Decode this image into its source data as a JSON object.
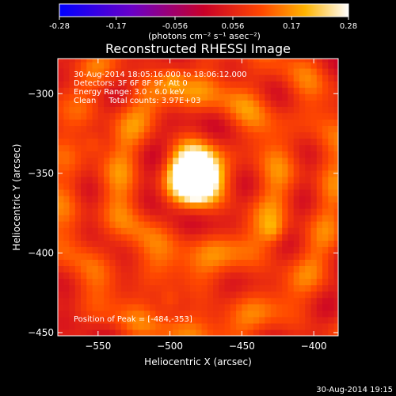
{
  "colorbar": {
    "ticks": [
      "-0.28",
      "-0.17",
      "-0.056",
      "0.056",
      "0.17",
      "0.28"
    ],
    "range": [
      -0.28,
      0.28
    ],
    "units_label": "(photons cm⁻² s⁻¹ asec⁻²)"
  },
  "chart_data": {
    "type": "heatmap",
    "title": "Reconstructed RHESSI Image",
    "xlabel": "Heliocentric X (arcsec)",
    "ylabel": "Heliocentric Y (arcsec)",
    "xlim": [
      -578,
      -383
    ],
    "ylim": [
      -452,
      -278
    ],
    "xticks": [
      -550,
      -500,
      -450,
      -400
    ],
    "yticks": [
      -300,
      -350,
      -400,
      -450
    ],
    "peak": [
      -484,
      -353
    ],
    "secondary_sources": [
      {
        "x": -430,
        "y": -388
      },
      {
        "x": -502,
        "y": -431
      },
      {
        "x": -555,
        "y": -333
      },
      {
        "x": -500,
        "y": -292
      }
    ],
    "info_lines": [
      "30-Aug-2014 18:05:16.000 to 18:06:12.000",
      "Detectors: 3F 6F 8F 9F, Att 0",
      "Energy Range: 3.0 - 6.0 keV",
      "Clean     Total counts: 3.97E+03"
    ],
    "peak_label": "Position of Peak = [-484,-353]",
    "colormap": "blue-purple-red-yellow-white",
    "grid": false
  },
  "footer": {
    "timestamp": "30-Aug-2014 19:15"
  }
}
